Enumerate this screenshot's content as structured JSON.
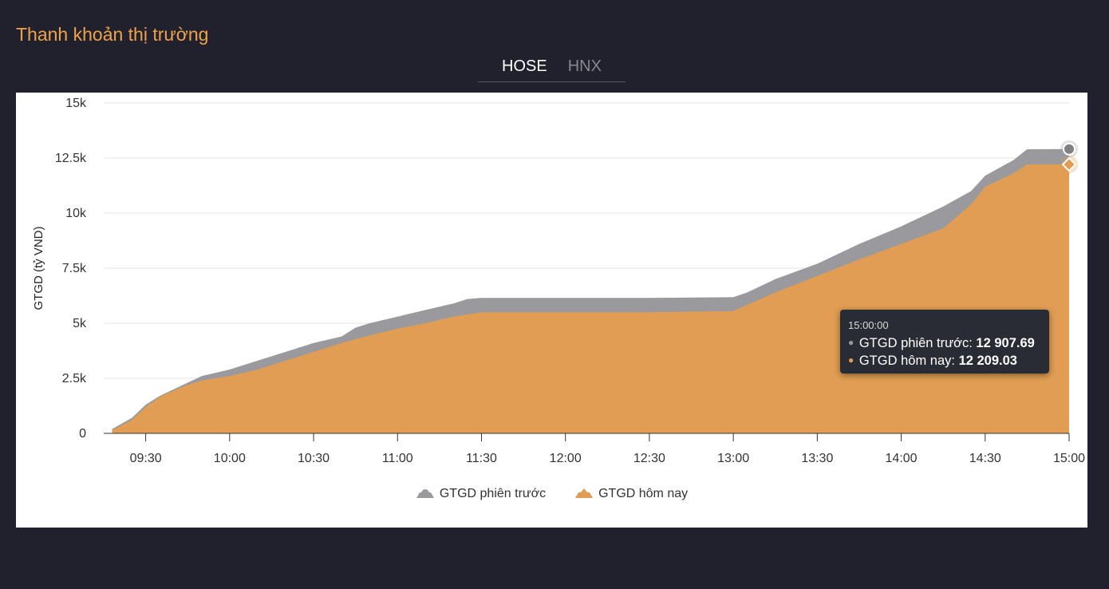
{
  "title": "Thanh khoản thị trường",
  "tabs": [
    {
      "label": "HOSE",
      "active": true
    },
    {
      "label": "HNX",
      "active": false
    }
  ],
  "tooltip": {
    "time": "15:00:00",
    "prev_label": "GTGD phiên trước:",
    "prev_value": "12 907.69",
    "today_label": "GTGD hôm nay:",
    "today_value": "12 209.03"
  },
  "chart_data": {
    "type": "area",
    "ylabel": "GTGD (tỷ VND)",
    "ylim": [
      0,
      15000
    ],
    "y_ticks": [
      {
        "value": 0,
        "label": "0"
      },
      {
        "value": 2500,
        "label": "2.5k"
      },
      {
        "value": 5000,
        "label": "5k"
      },
      {
        "value": 7500,
        "label": "7.5k"
      },
      {
        "value": 10000,
        "label": "10k"
      },
      {
        "value": 12500,
        "label": "12.5k"
      },
      {
        "value": 15000,
        "label": "15k"
      }
    ],
    "xlim": [
      "09:15",
      "15:00"
    ],
    "x_ticks": [
      "09:30",
      "10:00",
      "10:30",
      "11:00",
      "11:30",
      "12:00",
      "12:30",
      "13:00",
      "13:30",
      "14:00",
      "14:30",
      "15:00"
    ],
    "grid": true,
    "legend": "bottom-center",
    "colors": {
      "prev": "#9a9a9e",
      "today": "#e09d53"
    },
    "series": [
      {
        "name": "GTGD phiên trước",
        "key": "prev",
        "points": [
          [
            "09:18",
            200
          ],
          [
            "09:25",
            700
          ],
          [
            "09:30",
            1300
          ],
          [
            "09:35",
            1700
          ],
          [
            "09:40",
            2000
          ],
          [
            "09:45",
            2300
          ],
          [
            "09:50",
            2600
          ],
          [
            "10:00",
            2900
          ],
          [
            "10:10",
            3300
          ],
          [
            "10:20",
            3700
          ],
          [
            "10:30",
            4100
          ],
          [
            "10:40",
            4400
          ],
          [
            "10:45",
            4800
          ],
          [
            "10:50",
            5000
          ],
          [
            "11:00",
            5300
          ],
          [
            "11:10",
            5600
          ],
          [
            "11:20",
            5900
          ],
          [
            "11:25",
            6100
          ],
          [
            "11:30",
            6150
          ],
          [
            "12:00",
            6150
          ],
          [
            "12:30",
            6150
          ],
          [
            "13:00",
            6180
          ],
          [
            "13:05",
            6400
          ],
          [
            "13:15",
            7000
          ],
          [
            "13:30",
            7700
          ],
          [
            "13:45",
            8600
          ],
          [
            "14:00",
            9400
          ],
          [
            "14:15",
            10300
          ],
          [
            "14:25",
            11000
          ],
          [
            "14:30",
            11700
          ],
          [
            "14:40",
            12400
          ],
          [
            "14:45",
            12900
          ],
          [
            "15:00",
            12907.69
          ]
        ]
      },
      {
        "name": "GTGD hôm nay",
        "key": "today",
        "points": [
          [
            "09:18",
            150
          ],
          [
            "09:25",
            600
          ],
          [
            "09:30",
            1200
          ],
          [
            "09:35",
            1650
          ],
          [
            "09:40",
            1950
          ],
          [
            "09:45",
            2200
          ],
          [
            "09:50",
            2400
          ],
          [
            "10:00",
            2600
          ],
          [
            "10:10",
            2900
          ],
          [
            "10:20",
            3300
          ],
          [
            "10:30",
            3700
          ],
          [
            "10:40",
            4100
          ],
          [
            "10:50",
            4450
          ],
          [
            "11:00",
            4750
          ],
          [
            "11:10",
            5000
          ],
          [
            "11:20",
            5300
          ],
          [
            "11:30",
            5500
          ],
          [
            "12:00",
            5500
          ],
          [
            "12:30",
            5500
          ],
          [
            "13:00",
            5550
          ],
          [
            "13:15",
            6400
          ],
          [
            "13:30",
            7150
          ],
          [
            "13:45",
            7900
          ],
          [
            "14:00",
            8600
          ],
          [
            "14:15",
            9300
          ],
          [
            "14:25",
            10400
          ],
          [
            "14:30",
            11200
          ],
          [
            "14:40",
            11800
          ],
          [
            "14:45",
            12209.03
          ],
          [
            "15:00",
            12209.03
          ]
        ]
      }
    ]
  }
}
